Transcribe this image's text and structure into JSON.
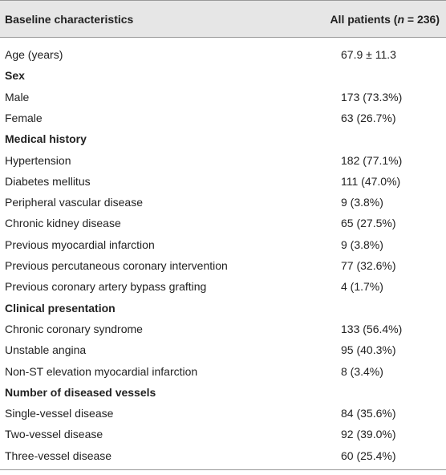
{
  "table": {
    "header": [
      [
        "Baseline characteristics"
      ],
      [
        "All patients (",
        "n",
        " = 236)"
      ]
    ],
    "rows": [
      [
        "Age (years)",
        "67.9 ± 11.3"
      ],
      [
        "Sex"
      ],
      [
        "Male",
        "173 (73.3%)"
      ],
      [
        "Female",
        "63 (26.7%)"
      ],
      [
        "Medical history"
      ],
      [
        "Hypertension",
        "182 (77.1%)"
      ],
      [
        "Diabetes mellitus",
        "111 (47.0%)"
      ],
      [
        "Peripheral vascular disease",
        "9 (3.8%)"
      ],
      [
        "Chronic kidney disease",
        "65 (27.5%)"
      ],
      [
        "Previous myocardial infarction",
        "9 (3.8%)"
      ],
      [
        "Previous percutaneous coronary intervention",
        "77 (32.6%)"
      ],
      [
        "Previous coronary artery bypass grafting",
        "4 (1.7%)"
      ],
      [
        "Clinical presentation"
      ],
      [
        "Chronic coronary syndrome",
        "133 (56.4%)"
      ],
      [
        "Unstable angina",
        "95 (40.3%)"
      ],
      [
        "Non-ST elevation myocardial infarction",
        "8 (3.4%)"
      ],
      [
        "Number of diseased vessels"
      ],
      [
        "Single-vessel disease",
        "84 (35.6%)"
      ],
      [
        "Two-vessel disease",
        "92 (39.0%)"
      ],
      [
        "Three-vessel disease",
        "60 (25.4%)"
      ]
    ]
  }
}
